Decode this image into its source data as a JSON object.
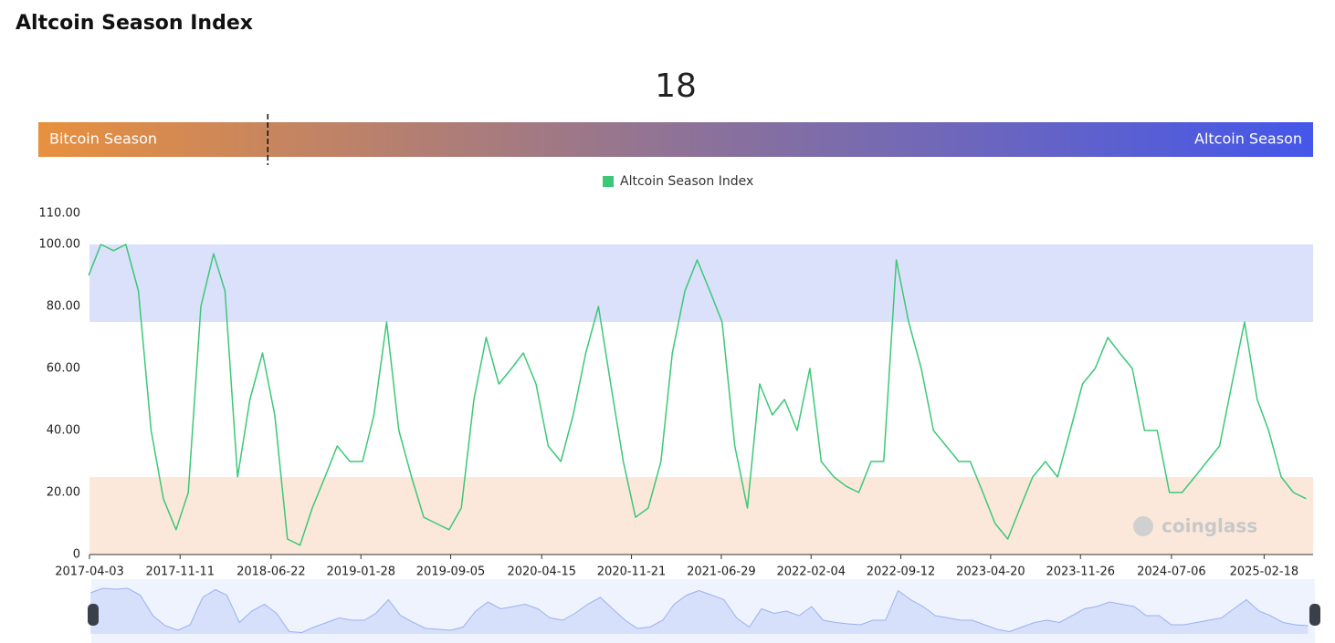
{
  "header": {
    "title": "Altcoin Season Index"
  },
  "gauge": {
    "value": 18,
    "left_label": "Bitcoin Season",
    "right_label": "Altcoin Season"
  },
  "chart_data": {
    "type": "line",
    "x": [
      "2017-04-01",
      "2017-05-01",
      "2017-06-01",
      "2017-07-01",
      "2017-08-01",
      "2017-09-01",
      "2017-10-01",
      "2017-11-01",
      "2017-12-01",
      "2018-01-01",
      "2018-02-01",
      "2018-03-01",
      "2018-04-01",
      "2018-05-01",
      "2018-06-01",
      "2018-07-01",
      "2018-08-01",
      "2018-09-01",
      "2018-10-01",
      "2018-11-01",
      "2018-12-01",
      "2019-01-01",
      "2019-02-01",
      "2019-03-01",
      "2019-04-01",
      "2019-05-01",
      "2019-06-01",
      "2019-07-01",
      "2019-08-01",
      "2019-09-01",
      "2019-10-01",
      "2019-11-01",
      "2019-12-01",
      "2020-01-01",
      "2020-02-01",
      "2020-03-01",
      "2020-04-01",
      "2020-05-01",
      "2020-06-01",
      "2020-07-01",
      "2020-08-01",
      "2020-09-01",
      "2020-10-01",
      "2020-11-01",
      "2020-12-01",
      "2021-01-01",
      "2021-02-01",
      "2021-03-01",
      "2021-04-01",
      "2021-05-01",
      "2021-06-01",
      "2021-07-01",
      "2021-08-01",
      "2021-09-01",
      "2021-10-01",
      "2021-11-01",
      "2021-12-01",
      "2022-01-01",
      "2022-02-01",
      "2022-03-01",
      "2022-04-01",
      "2022-05-01",
      "2022-06-01",
      "2022-07-01",
      "2022-08-01",
      "2022-09-01",
      "2022-10-01",
      "2022-11-01",
      "2022-12-01",
      "2023-01-01",
      "2023-02-01",
      "2023-03-01",
      "2023-04-01",
      "2023-05-01",
      "2023-06-01",
      "2023-07-01",
      "2023-08-01",
      "2023-09-01",
      "2023-10-01",
      "2023-11-01",
      "2023-12-01",
      "2024-01-01",
      "2024-02-01",
      "2024-03-01",
      "2024-04-01",
      "2024-05-01",
      "2024-06-01",
      "2024-07-01",
      "2024-08-01",
      "2024-09-01",
      "2024-10-01",
      "2024-11-01",
      "2024-12-01",
      "2025-01-01",
      "2025-02-01",
      "2025-03-01",
      "2025-04-01",
      "2025-05-01",
      "2025-06-01"
    ],
    "series": [
      {
        "name": "Altcoin Season Index",
        "color": "#3cc878",
        "values": [
          90,
          100,
          98,
          100,
          85,
          40,
          18,
          8,
          20,
          80,
          97,
          85,
          25,
          50,
          65,
          45,
          5,
          3,
          15,
          25,
          35,
          30,
          30,
          45,
          75,
          40,
          25,
          12,
          10,
          8,
          15,
          50,
          70,
          55,
          60,
          65,
          55,
          35,
          30,
          45,
          65,
          80,
          55,
          30,
          12,
          15,
          30,
          65,
          85,
          95,
          85,
          75,
          35,
          15,
          55,
          45,
          50,
          40,
          60,
          30,
          25,
          22,
          20,
          30,
          30,
          95,
          75,
          60,
          40,
          35,
          30,
          30,
          20,
          10,
          5,
          15,
          25,
          30,
          25,
          40,
          55,
          60,
          70,
          65,
          60,
          40,
          40,
          20,
          20,
          25,
          30,
          35,
          55,
          75,
          50,
          40,
          25,
          20,
          18
        ]
      }
    ],
    "xlim": [
      "2017-04-03",
      "2025-06-18"
    ],
    "xticks": [
      "2017-04-03",
      "2017-11-11",
      "2018-06-22",
      "2019-01-28",
      "2019-09-05",
      "2020-04-15",
      "2020-11-21",
      "2021-06-29",
      "2022-02-04",
      "2022-09-12",
      "2023-04-20",
      "2023-11-26",
      "2024-07-06",
      "2025-02-18"
    ],
    "ylim": [
      0,
      110
    ],
    "yticks": [
      0,
      {
        "value": 20,
        "label": "20.00"
      },
      {
        "value": 40,
        "label": "40.00"
      },
      {
        "value": 60,
        "label": "60.00"
      },
      {
        "value": 80,
        "label": "80.00"
      },
      {
        "value": 100,
        "label": "100.00"
      },
      {
        "value": 110,
        "label": "110.00"
      }
    ],
    "bands": [
      {
        "from": 75,
        "to": 100,
        "color": "#dbe0fb"
      },
      {
        "from": 0,
        "to": 25,
        "color": "#fbe8da"
      }
    ],
    "watermark": "coinglass"
  }
}
